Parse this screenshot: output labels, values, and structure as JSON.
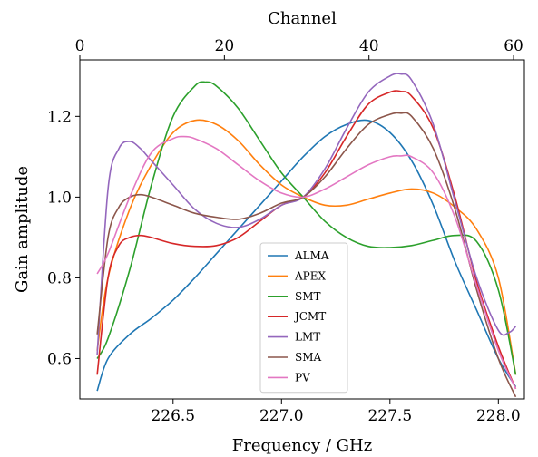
{
  "chart_data": {
    "type": "line",
    "xlabel": "Frequency / GHz",
    "ylabel": "Gain amplitude",
    "top_xlabel": "Channel",
    "xlim": [
      226.07,
      228.12
    ],
    "ylim": [
      0.5,
      1.34
    ],
    "top_xlim": [
      0,
      61.5
    ],
    "x_ticks": [
      {
        "value": 226.5,
        "label": "226.5"
      },
      {
        "value": 227.0,
        "label": "227.0"
      },
      {
        "value": 227.5,
        "label": "227.5"
      },
      {
        "value": 228.0,
        "label": "228.0"
      }
    ],
    "y_ticks": [
      {
        "value": 0.6,
        "label": "0.6"
      },
      {
        "value": 0.8,
        "label": "0.8"
      },
      {
        "value": 1.0,
        "label": "1.0"
      },
      {
        "value": 1.2,
        "label": "1.2"
      }
    ],
    "top_x_ticks": [
      {
        "value": 0,
        "label": "0"
      },
      {
        "value": 20,
        "label": "20"
      },
      {
        "value": 40,
        "label": "40"
      },
      {
        "value": 60,
        "label": "60"
      }
    ],
    "legend_position": "lower-center",
    "grid": false,
    "series": [
      {
        "name": "ALMA",
        "color": "#1f77b4",
        "x": [
          226.15,
          226.2,
          226.3,
          226.4,
          226.5,
          226.6,
          226.7,
          226.8,
          226.9,
          227.0,
          227.1,
          227.2,
          227.3,
          227.4,
          227.5,
          227.6,
          227.7,
          227.8,
          227.9,
          228.0,
          228.08
        ],
        "y": [
          0.52,
          0.6,
          0.66,
          0.7,
          0.745,
          0.8,
          0.86,
          0.92,
          0.98,
          1.04,
          1.1,
          1.15,
          1.18,
          1.19,
          1.16,
          1.09,
          0.98,
          0.84,
          0.72,
          0.6,
          0.53
        ]
      },
      {
        "name": "APEX",
        "color": "#ff7f0e",
        "x": [
          226.15,
          226.2,
          226.3,
          226.4,
          226.5,
          226.6,
          226.7,
          226.8,
          226.9,
          227.0,
          227.1,
          227.2,
          227.3,
          227.4,
          227.5,
          227.6,
          227.7,
          227.8,
          227.9,
          228.0,
          228.08
        ],
        "y": [
          0.62,
          0.8,
          0.97,
          1.08,
          1.16,
          1.19,
          1.18,
          1.14,
          1.08,
          1.03,
          1.0,
          0.98,
          0.98,
          0.995,
          1.01,
          1.02,
          1.01,
          0.975,
          0.92,
          0.8,
          0.56
        ]
      },
      {
        "name": "SMT",
        "color": "#2ca02c",
        "x": [
          226.15,
          226.2,
          226.3,
          226.4,
          226.5,
          226.6,
          226.65,
          226.7,
          226.8,
          226.9,
          227.0,
          227.1,
          227.2,
          227.3,
          227.4,
          227.5,
          227.6,
          227.7,
          227.8,
          227.9,
          228.0,
          228.08
        ],
        "y": [
          0.6,
          0.65,
          0.82,
          1.03,
          1.2,
          1.275,
          1.285,
          1.275,
          1.22,
          1.14,
          1.06,
          1.0,
          0.94,
          0.9,
          0.878,
          0.875,
          0.88,
          0.893,
          0.905,
          0.89,
          0.77,
          0.56
        ]
      },
      {
        "name": "JCMT",
        "color": "#d62728",
        "x": [
          226.15,
          226.2,
          226.25,
          226.3,
          226.35,
          226.4,
          226.5,
          226.6,
          226.7,
          226.8,
          226.9,
          227.0,
          227.1,
          227.2,
          227.3,
          227.4,
          227.5,
          227.55,
          227.6,
          227.7,
          227.8,
          227.9,
          228.0,
          228.08
        ],
        "y": [
          0.56,
          0.8,
          0.88,
          0.9,
          0.905,
          0.9,
          0.885,
          0.878,
          0.88,
          0.9,
          0.94,
          0.98,
          1.0,
          1.06,
          1.15,
          1.23,
          1.26,
          1.262,
          1.25,
          1.17,
          1.0,
          0.79,
          0.63,
          0.525
        ]
      },
      {
        "name": "LMT",
        "color": "#9467bd",
        "x": [
          226.15,
          226.2,
          226.25,
          226.3,
          226.35,
          226.4,
          226.5,
          226.6,
          226.7,
          226.8,
          226.9,
          227.0,
          227.1,
          227.2,
          227.3,
          227.4,
          227.5,
          227.55,
          227.6,
          227.7,
          227.8,
          227.9,
          228.0,
          228.05,
          228.08
        ],
        "y": [
          0.61,
          1.02,
          1.12,
          1.138,
          1.12,
          1.09,
          1.03,
          0.97,
          0.935,
          0.925,
          0.945,
          0.98,
          1.0,
          1.07,
          1.17,
          1.26,
          1.3,
          1.305,
          1.29,
          1.18,
          0.99,
          0.8,
          0.67,
          0.665,
          0.68
        ]
      },
      {
        "name": "SMA",
        "color": "#8c564b",
        "x": [
          226.15,
          226.2,
          226.25,
          226.3,
          226.35,
          226.4,
          226.5,
          226.6,
          226.7,
          226.8,
          226.9,
          227.0,
          227.1,
          227.2,
          227.3,
          227.4,
          227.5,
          227.55,
          227.6,
          227.7,
          227.8,
          227.9,
          228.0,
          228.08
        ],
        "y": [
          0.66,
          0.9,
          0.975,
          1.0,
          1.006,
          1.0,
          0.98,
          0.96,
          0.95,
          0.945,
          0.96,
          0.985,
          1.0,
          1.05,
          1.12,
          1.18,
          1.205,
          1.208,
          1.2,
          1.12,
          0.97,
          0.77,
          0.6,
          0.505
        ]
      },
      {
        "name": "PV",
        "color": "#e377c2",
        "x": [
          226.15,
          226.2,
          226.3,
          226.4,
          226.5,
          226.55,
          226.6,
          226.7,
          226.8,
          226.9,
          227.0,
          227.1,
          227.2,
          227.3,
          227.4,
          227.5,
          227.55,
          227.6,
          227.7,
          227.8,
          227.9,
          228.0,
          228.08
        ],
        "y": [
          0.81,
          0.86,
          1.0,
          1.11,
          1.145,
          1.15,
          1.145,
          1.12,
          1.08,
          1.04,
          1.01,
          1.0,
          1.02,
          1.05,
          1.08,
          1.1,
          1.102,
          1.1,
          1.06,
          0.95,
          0.78,
          0.62,
          0.525
        ]
      }
    ]
  }
}
